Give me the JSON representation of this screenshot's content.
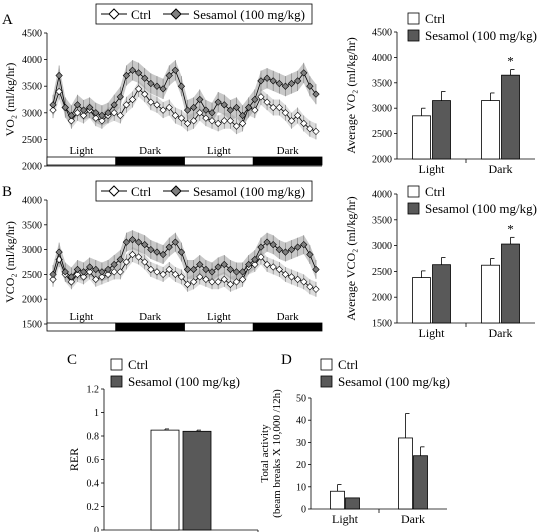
{
  "panel_letters": {
    "A": "A",
    "B": "B",
    "C": "C",
    "D": "D"
  },
  "legend": {
    "ctrl": "Ctrl",
    "sesamol": "Sesamol (100 mg/kg)"
  },
  "colors": {
    "ctrl_fill": "#ffffff",
    "sesamol_fill": "#595959",
    "marker_ctrl": "#ffffff",
    "marker_sesamol": "#808080",
    "error_band": "#9a9a9a"
  },
  "chart_data": [
    {
      "id": "A_time",
      "type": "line",
      "ylabel": "VO₂ (ml/kg/hr)",
      "ylim": [
        2000,
        4500
      ],
      "yticks": [
        2000,
        2500,
        3000,
        3500,
        4000,
        4500
      ],
      "phases": [
        "Light",
        "Dark",
        "Light",
        "Dark"
      ],
      "series": [
        {
          "name": "Ctrl",
          "values": [
            3050,
            3400,
            3100,
            2850,
            3000,
            2950,
            3050,
            2900,
            2850,
            2950,
            3000,
            2950,
            3150,
            3250,
            3450,
            3350,
            3200,
            3150,
            3050,
            3100,
            2950,
            2900,
            2800,
            2850,
            3000,
            2900,
            2850,
            2800,
            2850,
            2850,
            2750,
            2800,
            3100,
            3050,
            3300,
            3200,
            3100,
            3100,
            3000,
            2850,
            2950,
            2800,
            2700,
            2650
          ]
        },
        {
          "name": "Sesamol (100 mg/kg)",
          "values": [
            3150,
            3700,
            3100,
            2950,
            3150,
            3050,
            3100,
            3000,
            2950,
            3000,
            3150,
            3300,
            3700,
            3800,
            3750,
            3650,
            3550,
            3500,
            3450,
            3700,
            3800,
            3500,
            3050,
            3100,
            3250,
            3050,
            3000,
            3200,
            3150,
            3050,
            3100,
            2950,
            3100,
            3250,
            3600,
            3650,
            3600,
            3550,
            3500,
            3550,
            3600,
            3750,
            3500,
            3350
          ]
        }
      ]
    },
    {
      "id": "A_avg",
      "type": "bar",
      "categories": [
        "Light",
        "Dark"
      ],
      "ylabel": "Average VO₂ (ml/kg/hr)",
      "ylim": [
        2000,
        4500
      ],
      "yticks": [
        2000,
        2500,
        3000,
        3500,
        4000,
        4500
      ],
      "series": [
        {
          "name": "Ctrl",
          "values": [
            2850,
            3150
          ],
          "errors": [
            150,
            150
          ]
        },
        {
          "name": "Sesamol (100 mg/kg)",
          "values": [
            3150,
            3650
          ],
          "errors": [
            180,
            110
          ]
        }
      ],
      "significance": [
        "",
        "*"
      ]
    },
    {
      "id": "B_time",
      "type": "line",
      "ylabel": "VCO₂ (ml/kg/hr)",
      "ylim": [
        1500,
        4000
      ],
      "yticks": [
        1500,
        2000,
        2500,
        3000,
        3500,
        4000
      ],
      "phases": [
        "Light",
        "Dark",
        "Light",
        "Dark"
      ],
      "series": [
        {
          "name": "Ctrl",
          "values": [
            2400,
            2800,
            2500,
            2350,
            2500,
            2450,
            2550,
            2400,
            2450,
            2500,
            2550,
            2550,
            2750,
            2900,
            2850,
            2750,
            2600,
            2550,
            2500,
            2600,
            2500,
            2450,
            2300,
            2350,
            2450,
            2400,
            2350,
            2350,
            2400,
            2300,
            2350,
            2400,
            2650,
            2700,
            2850,
            2700,
            2650,
            2600,
            2500,
            2450,
            2400,
            2350,
            2250,
            2200
          ]
        },
        {
          "name": "Sesamol (100 mg/kg)",
          "values": [
            2500,
            2950,
            2550,
            2450,
            2600,
            2550,
            2650,
            2600,
            2550,
            2600,
            2700,
            2800,
            3150,
            3200,
            3150,
            3100,
            3000,
            2950,
            2900,
            3050,
            3150,
            2950,
            2600,
            2600,
            2700,
            2600,
            2550,
            2650,
            2700,
            2600,
            2550,
            2550,
            2700,
            2800,
            3050,
            3150,
            3100,
            3000,
            2950,
            3000,
            3050,
            3100,
            2900,
            2600
          ]
        }
      ]
    },
    {
      "id": "B_avg",
      "type": "bar",
      "categories": [
        "Light",
        "Dark"
      ],
      "ylabel": "Average VCO₂ (ml/kg/hr)",
      "ylim": [
        1500,
        4000
      ],
      "yticks": [
        1500,
        2000,
        2500,
        3000,
        3500,
        4000
      ],
      "series": [
        {
          "name": "Ctrl",
          "values": [
            2380,
            2620
          ],
          "errors": [
            130,
            130
          ]
        },
        {
          "name": "Sesamol (100 mg/kg)",
          "values": [
            2630,
            3030
          ],
          "errors": [
            140,
            130
          ]
        }
      ],
      "significance": [
        "",
        "*"
      ]
    },
    {
      "id": "C",
      "type": "bar",
      "categories": [
        ""
      ],
      "ylabel": "RER",
      "ylim": [
        0,
        1.2
      ],
      "yticks": [
        "0",
        "0.2",
        "0.4",
        "0.6",
        "0.8",
        "1",
        "1.2"
      ],
      "series": [
        {
          "name": "Ctrl",
          "values": [
            0.85
          ],
          "errors": [
            0.01
          ]
        },
        {
          "name": "Sesamol (100 mg/kg)",
          "values": [
            0.84
          ],
          "errors": [
            0.01
          ]
        }
      ]
    },
    {
      "id": "D",
      "type": "bar",
      "categories": [
        "Light",
        "Dark"
      ],
      "ylabel": [
        "Total activity",
        "(beam breaks X 10,000 /12h)"
      ],
      "ylim": [
        0,
        50
      ],
      "yticks": [
        0,
        10,
        20,
        30,
        40,
        50
      ],
      "series": [
        {
          "name": "Ctrl",
          "values": [
            8,
            32
          ],
          "errors": [
            3,
            11
          ]
        },
        {
          "name": "Sesamol (100 mg/kg)",
          "values": [
            5,
            24
          ],
          "errors": [
            0,
            4
          ]
        }
      ]
    }
  ]
}
